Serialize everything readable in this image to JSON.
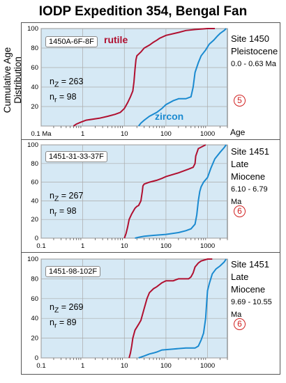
{
  "title": "IODP Expedition 354, Bengal Fan",
  "ylabel": "Cumulative Age Distribution",
  "pct_label": "% 0",
  "xlabel": "Age",
  "colors": {
    "rutile": "#b01030",
    "zircon": "#1a8ad0",
    "plot_bg": "#d6e9f5",
    "grid": "#aaaaaa",
    "circle": "#d02020"
  },
  "panels": [
    {
      "sample": "1450A-6F-8F",
      "nz_label": "n",
      "nz_sub": "Z",
      "nz_value": " = 263",
      "nr_label": "n",
      "nr_sub": "r",
      "nr_value": " = 98",
      "site": "Site 1450",
      "epoch": [
        "Pleistocene"
      ],
      "range": "0.0 - 0.63 Ma",
      "circle": "5",
      "rutile_label": "rutile",
      "zircon_label": "zircon"
    },
    {
      "sample": "1451-31-33-37F",
      "nz_label": "n",
      "nz_sub": "Z",
      "nz_value": " = 267",
      "nr_label": "n",
      "nr_sub": "r",
      "nr_value": " = 98",
      "site": "Site 1451",
      "epoch": [
        "Late",
        "Miocene"
      ],
      "range": "6.10 - 6.79 Ma",
      "circle": "6"
    },
    {
      "sample": "1451-98-102F",
      "nz_label": "n",
      "nz_sub": "Z",
      "nz_value": " = 269",
      "nr_label": "n",
      "nr_sub": "r",
      "nr_value": " = 89",
      "site": "Site 1451",
      "epoch": [
        "Late",
        "Miocene"
      ],
      "range": "9.69 - 10.55 Ma",
      "circle": "6"
    }
  ],
  "chart_data": [
    {
      "type": "line",
      "title": "",
      "xlabel": "Age",
      "ylabel": "Cumulative Age Distribution",
      "x_scale": "log",
      "xlim": [
        0.1,
        3000
      ],
      "ylim": [
        0,
        100
      ],
      "x_ticks": [
        {
          "v": 0.1,
          "label": "0.1 Ma"
        },
        {
          "v": 1,
          "label": "1"
        },
        {
          "v": 10,
          "label": "10"
        },
        {
          "v": 100,
          "label": "100"
        },
        {
          "v": 1000,
          "label": "1000"
        }
      ],
      "y_ticks": [
        0,
        20,
        40,
        60,
        80,
        100
      ],
      "grid": true,
      "series": [
        {
          "name": "rutile",
          "color": "#b01030",
          "points": [
            [
              0.6,
              0
            ],
            [
              0.7,
              2
            ],
            [
              0.9,
              4
            ],
            [
              1.2,
              6
            ],
            [
              2.5,
              8
            ],
            [
              4,
              10
            ],
            [
              6,
              12
            ],
            [
              8,
              14
            ],
            [
              10,
              18
            ],
            [
              12,
              24
            ],
            [
              14,
              30
            ],
            [
              16,
              36
            ],
            [
              17,
              45
            ],
            [
              18,
              58
            ],
            [
              19,
              68
            ],
            [
              20,
              72
            ],
            [
              25,
              76
            ],
            [
              30,
              80
            ],
            [
              40,
              83
            ],
            [
              50,
              86
            ],
            [
              60,
              88
            ],
            [
              70,
              90
            ],
            [
              100,
              93
            ],
            [
              200,
              96
            ],
            [
              300,
              98
            ],
            [
              500,
              99
            ],
            [
              1000,
              100
            ],
            [
              1500,
              100
            ]
          ]
        },
        {
          "name": "zircon",
          "color": "#1a8ad0",
          "points": [
            [
              22,
              0
            ],
            [
              25,
              3
            ],
            [
              30,
              6
            ],
            [
              40,
              10
            ],
            [
              60,
              14
            ],
            [
              80,
              18
            ],
            [
              100,
              22
            ],
            [
              150,
              26
            ],
            [
              200,
              28
            ],
            [
              300,
              28
            ],
            [
              400,
              30
            ],
            [
              450,
              40
            ],
            [
              500,
              55
            ],
            [
              600,
              65
            ],
            [
              700,
              72
            ],
            [
              900,
              78
            ],
            [
              1100,
              84
            ],
            [
              1400,
              88
            ],
            [
              1700,
              92
            ],
            [
              2000,
              95
            ],
            [
              2500,
              98
            ],
            [
              2800,
              100
            ]
          ]
        }
      ]
    },
    {
      "type": "line",
      "title": "",
      "x_scale": "log",
      "xlim": [
        0.1,
        3000
      ],
      "ylim": [
        0,
        100
      ],
      "x_ticks": [
        {
          "v": 0.1,
          "label": "0.1"
        },
        {
          "v": 1,
          "label": "1"
        },
        {
          "v": 10,
          "label": "10"
        },
        {
          "v": 100,
          "label": "100"
        },
        {
          "v": 1000,
          "label": "1000"
        }
      ],
      "y_ticks": [
        0,
        20,
        40,
        60,
        80,
        100
      ],
      "grid": true,
      "series": [
        {
          "name": "rutile",
          "color": "#b01030",
          "points": [
            [
              10,
              0
            ],
            [
              11,
              5
            ],
            [
              12,
              12
            ],
            [
              13,
              20
            ],
            [
              15,
              26
            ],
            [
              18,
              32
            ],
            [
              20,
              34
            ],
            [
              22,
              35
            ],
            [
              25,
              40
            ],
            [
              27,
              50
            ],
            [
              28,
              56
            ],
            [
              30,
              58
            ],
            [
              40,
              60
            ],
            [
              60,
              62
            ],
            [
              80,
              64
            ],
            [
              100,
              66
            ],
            [
              200,
              70
            ],
            [
              350,
              74
            ],
            [
              450,
              76
            ],
            [
              500,
              80
            ],
            [
              520,
              88
            ],
            [
              600,
              96
            ],
            [
              900,
              100
            ]
          ]
        },
        {
          "name": "zircon",
          "color": "#1a8ad0",
          "points": [
            [
              18,
              0
            ],
            [
              22,
              1
            ],
            [
              30,
              2
            ],
            [
              50,
              3
            ],
            [
              100,
              4
            ],
            [
              200,
              6
            ],
            [
              300,
              8
            ],
            [
              400,
              10
            ],
            [
              500,
              15
            ],
            [
              550,
              25
            ],
            [
              600,
              40
            ],
            [
              650,
              50
            ],
            [
              700,
              55
            ],
            [
              800,
              60
            ],
            [
              1000,
              65
            ],
            [
              1200,
              75
            ],
            [
              1500,
              85
            ],
            [
              2000,
              92
            ],
            [
              2500,
              97
            ],
            [
              2800,
              100
            ]
          ]
        }
      ]
    },
    {
      "type": "line",
      "title": "",
      "x_scale": "log",
      "xlim": [
        0.1,
        3000
      ],
      "ylim": [
        0,
        100
      ],
      "x_ticks": [
        {
          "v": 0.1,
          "label": "0.1"
        },
        {
          "v": 1,
          "label": "1"
        },
        {
          "v": 10,
          "label": "10"
        },
        {
          "v": 100,
          "label": "100"
        },
        {
          "v": 1000,
          "label": "1000"
        }
      ],
      "y_ticks": [
        0,
        20,
        40,
        60,
        80,
        100
      ],
      "grid": true,
      "series": [
        {
          "name": "rutile",
          "color": "#b01030",
          "points": [
            [
              13,
              0
            ],
            [
              14,
              5
            ],
            [
              15,
              12
            ],
            [
              16,
              20
            ],
            [
              18,
              28
            ],
            [
              22,
              34
            ],
            [
              25,
              38
            ],
            [
              30,
              50
            ],
            [
              35,
              60
            ],
            [
              40,
              66
            ],
            [
              50,
              70
            ],
            [
              60,
              72
            ],
            [
              80,
              76
            ],
            [
              100,
              78
            ],
            [
              150,
              78
            ],
            [
              200,
              80
            ],
            [
              350,
              80
            ],
            [
              400,
              82
            ],
            [
              450,
              86
            ],
            [
              500,
              92
            ],
            [
              600,
              96
            ],
            [
              700,
              98
            ],
            [
              1000,
              100
            ],
            [
              1300,
              100
            ]
          ]
        },
        {
          "name": "zircon",
          "color": "#1a8ad0",
          "points": [
            [
              22,
              0
            ],
            [
              30,
              2
            ],
            [
              40,
              4
            ],
            [
              50,
              5
            ],
            [
              60,
              6
            ],
            [
              80,
              8
            ],
            [
              150,
              9
            ],
            [
              300,
              10
            ],
            [
              500,
              10
            ],
            [
              600,
              12
            ],
            [
              700,
              18
            ],
            [
              800,
              25
            ],
            [
              900,
              40
            ],
            [
              950,
              55
            ],
            [
              1000,
              68
            ],
            [
              1100,
              75
            ],
            [
              1300,
              85
            ],
            [
              1600,
              90
            ],
            [
              2000,
              93
            ],
            [
              2500,
              97
            ],
            [
              2800,
              100
            ]
          ]
        }
      ]
    }
  ]
}
